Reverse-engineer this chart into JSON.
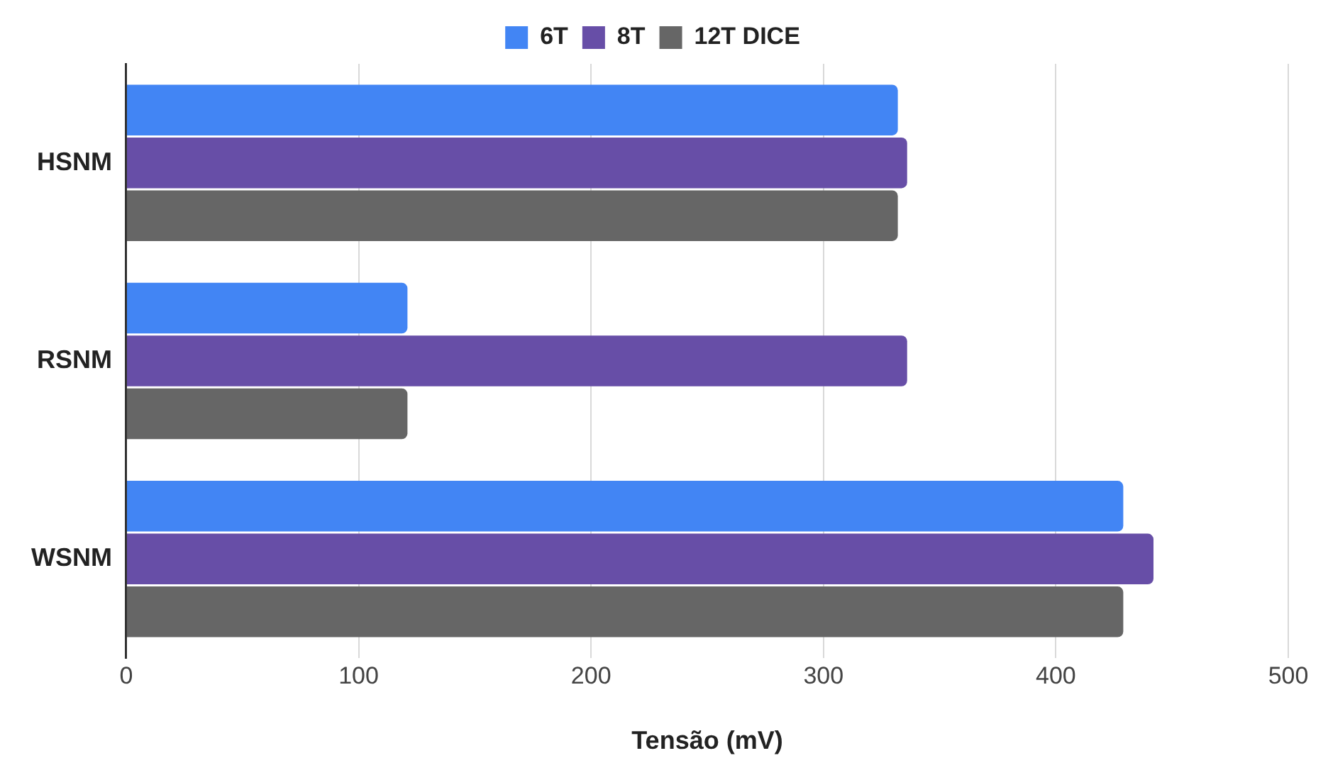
{
  "chart_data": {
    "type": "bar",
    "orientation": "horizontal",
    "xlabel": "Tensão (mV)",
    "categories": [
      "HSNM",
      "RSNM",
      "WSNM"
    ],
    "series": [
      {
        "name": "6T",
        "color": "#4285f4",
        "values": [
          332,
          121,
          429
        ]
      },
      {
        "name": "8T",
        "color": "#674ea7",
        "values": [
          336,
          336,
          442
        ]
      },
      {
        "name": "12T DICE",
        "color": "#666666",
        "values": [
          332,
          121,
          429
        ]
      }
    ],
    "xlim": [
      0,
      500
    ],
    "xticks": [
      0,
      100,
      200,
      300,
      400,
      500
    ],
    "grid": "x",
    "legend": "top"
  }
}
